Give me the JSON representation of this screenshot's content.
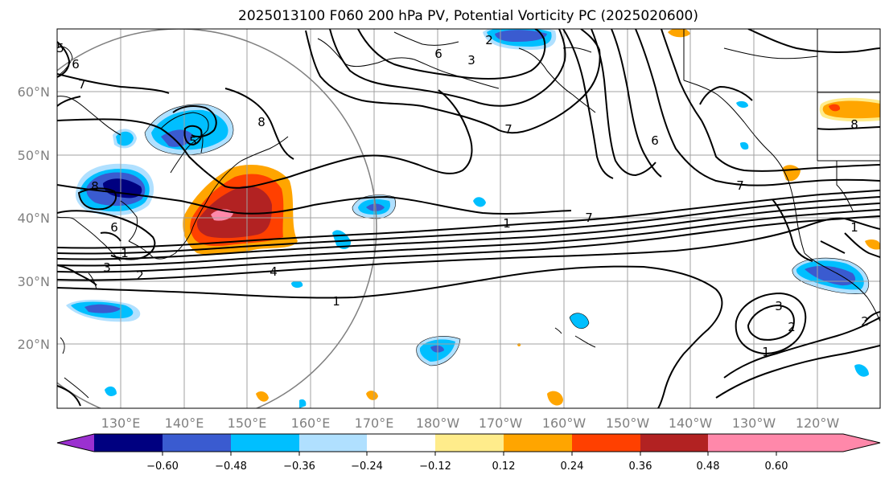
{
  "title": "2025013100 F060 200 hPa PV, Potential Vorticity PC (2025020600)",
  "lon_labels": [
    "130°E",
    "140°E",
    "150°E",
    "160°E",
    "170°E",
    "180°W",
    "170°W",
    "160°W",
    "150°W",
    "140°W",
    "130°W",
    "120°W"
  ],
  "lat_labels": [
    "60°N",
    "50°N",
    "40°N",
    "30°N",
    "20°N"
  ],
  "colorbar": {
    "ticks": [
      "−0.60",
      "−0.48",
      "−0.36",
      "−0.24",
      "−0.12",
      "0.12",
      "0.24",
      "0.36",
      "0.48",
      "0.60"
    ],
    "colors": [
      "#9b30d0",
      "#000080",
      "#3a5bd0",
      "#00bfff",
      "#b0e0ff",
      "#ffffff",
      "#ffec8b",
      "#ffa500",
      "#ff4000",
      "#b22222",
      "#ff88aa"
    ]
  },
  "contour_labels": [
    "5",
    "6",
    "7",
    "8",
    "2",
    "3",
    "6",
    "7",
    "1",
    "7",
    "8",
    "8",
    "6",
    "7",
    "1",
    "4",
    "1",
    "3",
    "2",
    "1",
    "2",
    "5",
    "6",
    "3",
    "2",
    "1"
  ],
  "shading_colors": {
    "purple": "#9b30d0",
    "navy": "#000080",
    "blue": "#3a5bd0",
    "cyan": "#00bfff",
    "lightblue": "#b0e0ff",
    "yellow": "#ffec8b",
    "orange": "#ffa500",
    "redorange": "#ff4000",
    "darkred": "#b22222",
    "pink": "#ff88aa"
  }
}
